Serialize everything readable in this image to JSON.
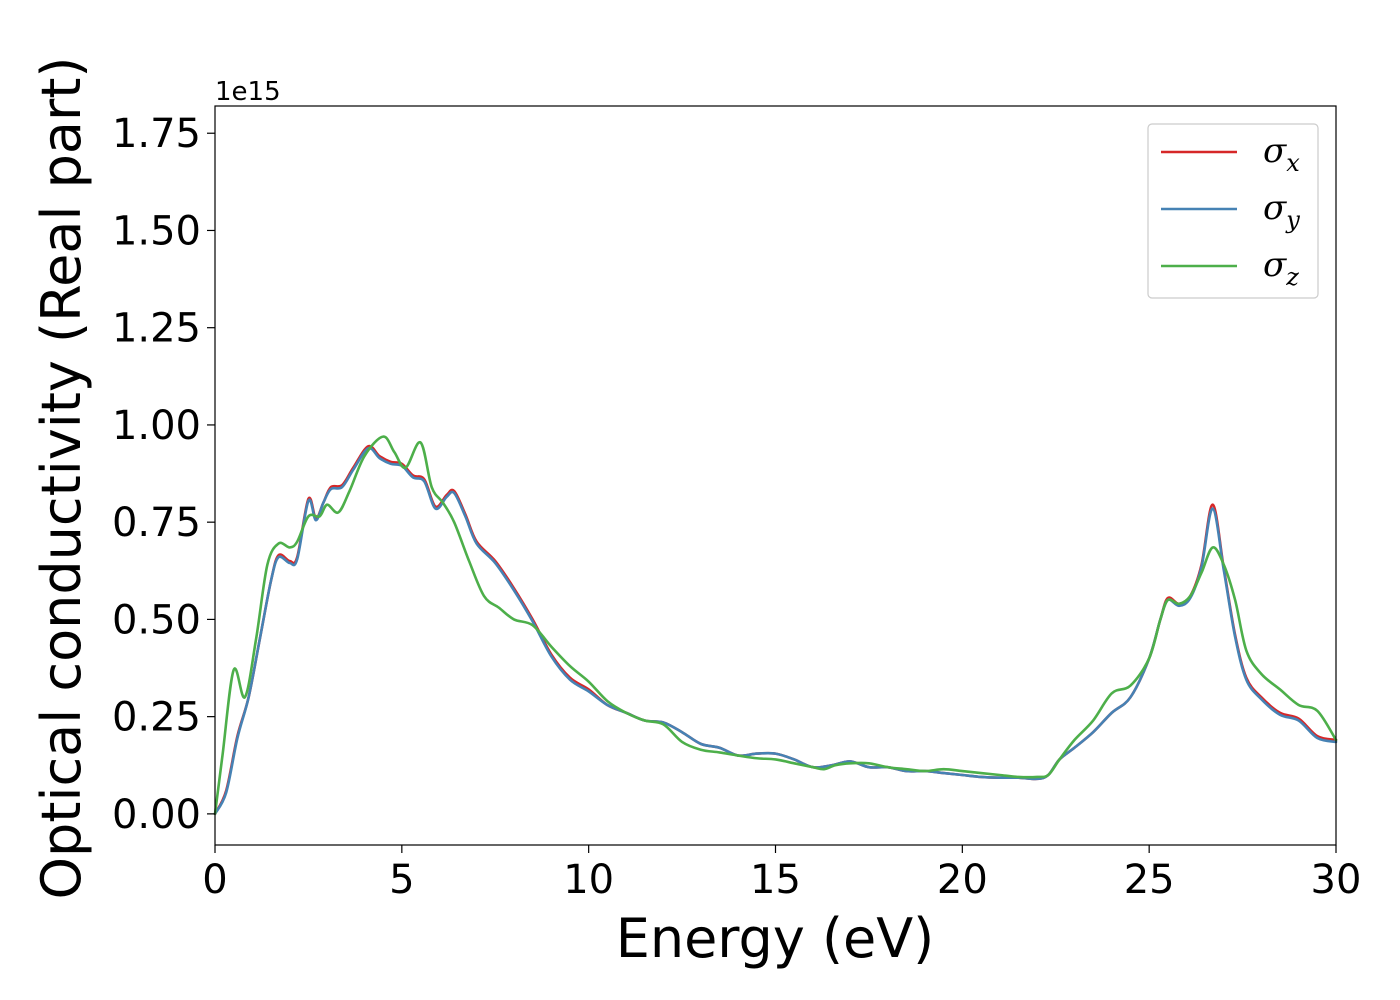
{
  "chart_data": {
    "type": "line",
    "title": "",
    "xlabel": "Energy (eV)",
    "ylabel": "Optical conductivity (Real part)",
    "y_offset_label": "1e15",
    "xlim": [
      0,
      30
    ],
    "ylim": [
      -0.08,
      1.82
    ],
    "x_ticks": [
      0,
      5,
      10,
      15,
      20,
      25,
      30
    ],
    "x_tick_labels": [
      "0",
      "5",
      "10",
      "15",
      "20",
      "25",
      "30"
    ],
    "y_ticks": [
      0.0,
      0.25,
      0.5,
      0.75,
      1.0,
      1.25,
      1.5,
      1.75
    ],
    "y_tick_labels": [
      "0.00",
      "0.25",
      "0.50",
      "0.75",
      "1.00",
      "1.25",
      "1.50",
      "1.75"
    ],
    "grid": false,
    "legend_position": "top-right",
    "series": [
      {
        "name": "σx",
        "symbol": "σ",
        "subscript": "x",
        "color": "#d62728",
        "x": [
          0,
          0.3,
          0.6,
          0.9,
          1.2,
          1.5,
          1.7,
          2.0,
          2.2,
          2.5,
          2.7,
          2.9,
          3.1,
          3.4,
          3.7,
          4.1,
          4.4,
          4.7,
          5.0,
          5.3,
          5.6,
          5.9,
          6.2,
          6.4,
          6.7,
          7.0,
          7.5,
          8.0,
          8.5,
          9.0,
          9.5,
          10.0,
          10.5,
          11.0,
          11.5,
          12.0,
          12.5,
          13.0,
          13.5,
          14.0,
          14.5,
          15.0,
          15.5,
          16.0,
          16.5,
          17.0,
          17.5,
          18.0,
          18.5,
          19.0,
          19.5,
          20.0,
          20.5,
          21.0,
          21.5,
          22.0,
          22.3,
          22.6,
          23.0,
          23.5,
          24.0,
          24.5,
          25.0,
          25.3,
          25.5,
          25.8,
          26.1,
          26.4,
          26.7,
          27.0,
          27.3,
          27.6,
          28.0,
          28.5,
          29.0,
          29.5,
          30.0
        ],
        "y": [
          0.0,
          0.06,
          0.2,
          0.3,
          0.45,
          0.6,
          0.665,
          0.65,
          0.66,
          0.81,
          0.76,
          0.8,
          0.84,
          0.845,
          0.89,
          0.945,
          0.92,
          0.905,
          0.9,
          0.87,
          0.86,
          0.79,
          0.82,
          0.83,
          0.77,
          0.7,
          0.65,
          0.58,
          0.5,
          0.41,
          0.35,
          0.32,
          0.28,
          0.26,
          0.24,
          0.235,
          0.21,
          0.18,
          0.17,
          0.15,
          0.155,
          0.155,
          0.14,
          0.12,
          0.125,
          0.135,
          0.12,
          0.12,
          0.11,
          0.11,
          0.105,
          0.1,
          0.095,
          0.093,
          0.093,
          0.09,
          0.1,
          0.14,
          0.17,
          0.21,
          0.26,
          0.3,
          0.4,
          0.5,
          0.555,
          0.54,
          0.56,
          0.64,
          0.795,
          0.63,
          0.46,
          0.35,
          0.3,
          0.26,
          0.245,
          0.2,
          0.19
        ]
      },
      {
        "name": "σy",
        "symbol": "σ",
        "subscript": "y",
        "color": "#4682b4",
        "x": [
          0,
          0.3,
          0.6,
          0.9,
          1.2,
          1.5,
          1.7,
          2.0,
          2.2,
          2.5,
          2.7,
          2.9,
          3.1,
          3.4,
          3.7,
          4.1,
          4.4,
          4.7,
          5.0,
          5.3,
          5.6,
          5.9,
          6.2,
          6.4,
          6.7,
          7.0,
          7.5,
          8.0,
          8.5,
          9.0,
          9.5,
          10.0,
          10.5,
          11.0,
          11.5,
          12.0,
          12.5,
          13.0,
          13.5,
          14.0,
          14.5,
          15.0,
          15.5,
          16.0,
          16.5,
          17.0,
          17.5,
          18.0,
          18.5,
          19.0,
          19.5,
          20.0,
          20.5,
          21.0,
          21.5,
          22.0,
          22.3,
          22.6,
          23.0,
          23.5,
          24.0,
          24.5,
          25.0,
          25.3,
          25.5,
          25.8,
          26.1,
          26.4,
          26.7,
          27.0,
          27.3,
          27.6,
          28.0,
          28.5,
          29.0,
          29.5,
          30.0
        ],
        "y": [
          0.0,
          0.055,
          0.195,
          0.3,
          0.45,
          0.6,
          0.66,
          0.645,
          0.655,
          0.805,
          0.755,
          0.8,
          0.835,
          0.84,
          0.885,
          0.94,
          0.915,
          0.9,
          0.895,
          0.865,
          0.855,
          0.785,
          0.815,
          0.825,
          0.765,
          0.695,
          0.645,
          0.575,
          0.495,
          0.405,
          0.345,
          0.315,
          0.28,
          0.26,
          0.24,
          0.235,
          0.21,
          0.18,
          0.17,
          0.15,
          0.155,
          0.155,
          0.14,
          0.12,
          0.125,
          0.135,
          0.12,
          0.12,
          0.11,
          0.11,
          0.105,
          0.1,
          0.095,
          0.093,
          0.093,
          0.09,
          0.1,
          0.14,
          0.17,
          0.21,
          0.26,
          0.3,
          0.4,
          0.5,
          0.55,
          0.535,
          0.555,
          0.635,
          0.785,
          0.625,
          0.455,
          0.345,
          0.295,
          0.255,
          0.24,
          0.195,
          0.185
        ]
      },
      {
        "name": "σz",
        "symbol": "σ",
        "subscript": "z",
        "color": "#4daf4a",
        "x": [
          0,
          0.2,
          0.5,
          0.8,
          1.1,
          1.4,
          1.7,
          2.0,
          2.2,
          2.5,
          2.8,
          3.0,
          3.3,
          3.6,
          4.0,
          4.5,
          4.8,
          5.1,
          5.5,
          5.8,
          6.1,
          6.4,
          6.8,
          7.2,
          7.6,
          8.0,
          8.5,
          9.0,
          9.5,
          10.0,
          10.5,
          11.0,
          11.5,
          12.0,
          12.5,
          13.0,
          13.5,
          14.0,
          14.5,
          15.0,
          15.5,
          16.0,
          16.3,
          16.6,
          17.0,
          17.5,
          18.0,
          18.5,
          19.0,
          19.5,
          20.0,
          20.5,
          21.0,
          21.5,
          22.0,
          22.3,
          22.6,
          23.0,
          23.5,
          24.0,
          24.5,
          25.0,
          25.3,
          25.5,
          25.8,
          26.1,
          26.4,
          26.7,
          27.0,
          27.3,
          27.6,
          28.0,
          28.5,
          29.0,
          29.5,
          30.0
        ],
        "y": [
          0.0,
          0.15,
          0.37,
          0.3,
          0.45,
          0.64,
          0.695,
          0.685,
          0.7,
          0.765,
          0.765,
          0.795,
          0.775,
          0.83,
          0.92,
          0.97,
          0.93,
          0.89,
          0.955,
          0.84,
          0.8,
          0.75,
          0.65,
          0.56,
          0.53,
          0.5,
          0.485,
          0.43,
          0.38,
          0.34,
          0.29,
          0.26,
          0.24,
          0.23,
          0.185,
          0.165,
          0.158,
          0.15,
          0.143,
          0.14,
          0.13,
          0.12,
          0.115,
          0.125,
          0.13,
          0.13,
          0.12,
          0.115,
          0.11,
          0.115,
          0.11,
          0.105,
          0.1,
          0.095,
          0.095,
          0.1,
          0.14,
          0.19,
          0.24,
          0.31,
          0.33,
          0.4,
          0.5,
          0.55,
          0.54,
          0.56,
          0.62,
          0.685,
          0.64,
          0.55,
          0.42,
          0.36,
          0.32,
          0.28,
          0.265,
          0.19
        ]
      }
    ]
  }
}
